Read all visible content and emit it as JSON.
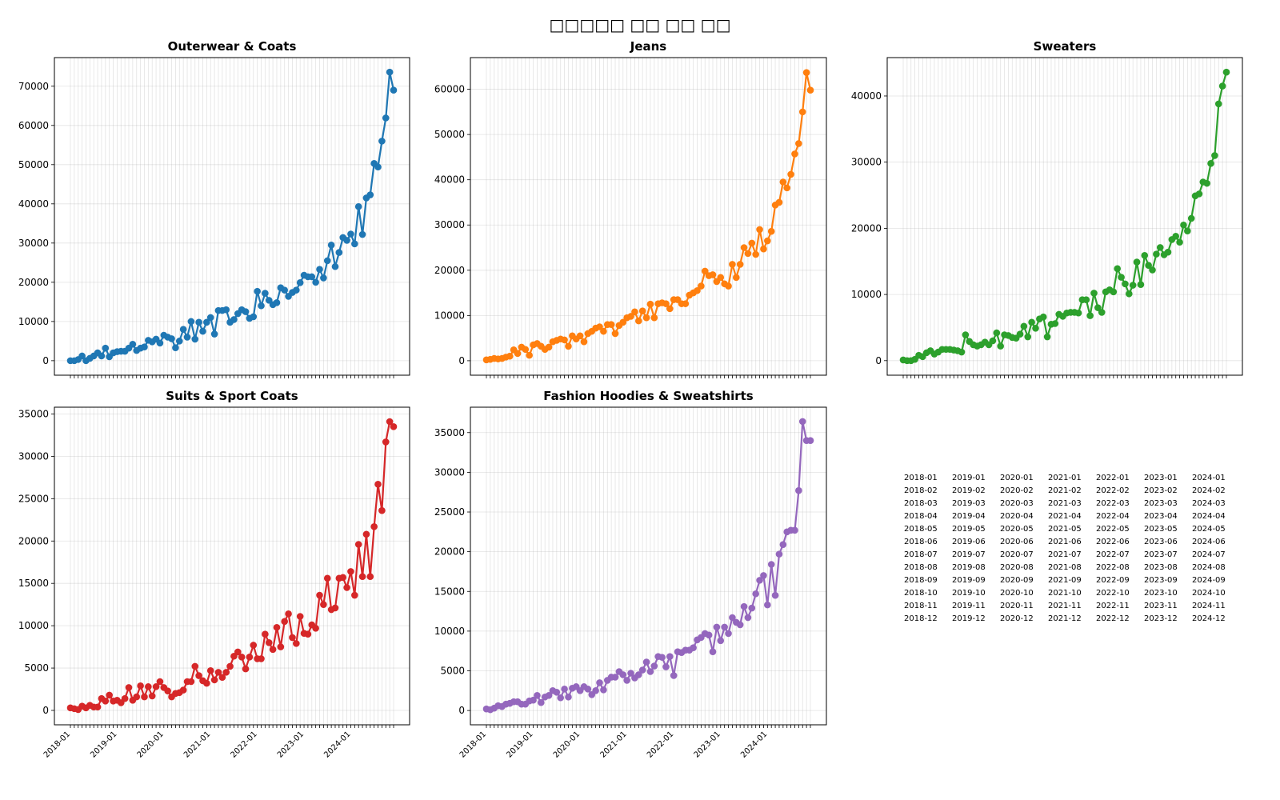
{
  "title": "□□□□□ □□ □□ □□",
  "chart_data": [
    {
      "type": "line",
      "title": "Outerwear & Coats",
      "color": "#1f77b4",
      "ylim": [
        -3700,
        77300
      ],
      "yticks": [
        0,
        10000,
        20000,
        30000,
        40000,
        50000,
        60000,
        70000
      ],
      "grid": true,
      "values": [
        0,
        0,
        300,
        1200,
        0,
        600,
        1200,
        2000,
        1200,
        3200,
        1000,
        2000,
        2300,
        2400,
        2400,
        3200,
        4200,
        2600,
        3200,
        3500,
        5200,
        4800,
        5500,
        4500,
        6500,
        6000,
        5600,
        3300,
        5000,
        8000,
        6000,
        10000,
        5500,
        9800,
        7500,
        9800,
        11000,
        6800,
        12800,
        12800,
        13000,
        9800,
        10500,
        12000,
        13000,
        12500,
        10800,
        11200,
        17700,
        14000,
        17200,
        15400,
        14300,
        14800,
        18600,
        18000,
        16400,
        17400,
        18000,
        19900,
        21800,
        21400,
        21400,
        20000,
        23300,
        21100,
        25500,
        29500,
        24000,
        27600,
        31400,
        30700,
        32300,
        29800,
        39300,
        32200,
        41500,
        42300,
        50300,
        49400,
        56000,
        61900,
        73600,
        69000
      ]
    },
    {
      "type": "line",
      "title": "Jeans",
      "color": "#ff7f0e",
      "ylim": [
        -3200,
        67000
      ],
      "yticks": [
        0,
        10000,
        20000,
        30000,
        40000,
        50000,
        60000
      ],
      "grid": true,
      "values": [
        200,
        300,
        500,
        400,
        500,
        800,
        1000,
        2400,
        1600,
        3000,
        2500,
        1200,
        3500,
        3800,
        3200,
        2500,
        3000,
        4200,
        4500,
        4800,
        4600,
        3200,
        5500,
        4800,
        5500,
        4200,
        6000,
        6500,
        7200,
        7500,
        6500,
        8000,
        8000,
        6000,
        7800,
        8500,
        9500,
        9800,
        10800,
        8800,
        11000,
        9500,
        12500,
        9500,
        12600,
        12800,
        12600,
        11500,
        13500,
        13500,
        12600,
        12600,
        14500,
        15000,
        15500,
        16500,
        19800,
        18800,
        19000,
        17500,
        18400,
        17000,
        16500,
        21300,
        18400,
        21300,
        25000,
        23700,
        26000,
        23500,
        29000,
        24700,
        26500,
        28600,
        34400,
        35000,
        39500,
        38200,
        41200,
        45700,
        48000,
        55000,
        63700,
        59800
      ]
    },
    {
      "type": "line",
      "title": "Sweaters",
      "color": "#2ca02c",
      "ylim": [
        -2200,
        45800
      ],
      "yticks": [
        0,
        10000,
        20000,
        30000,
        40000
      ],
      "grid": true,
      "values": [
        100,
        0,
        0,
        200,
        800,
        600,
        1200,
        1500,
        1000,
        1300,
        1700,
        1700,
        1700,
        1600,
        1500,
        1300,
        3900,
        2900,
        2400,
        2200,
        2400,
        2800,
        2400,
        3000,
        4200,
        2200,
        3900,
        3800,
        3500,
        3400,
        4000,
        5200,
        3600,
        5800,
        4900,
        6300,
        6600,
        3600,
        5500,
        5600,
        7000,
        6700,
        7200,
        7300,
        7300,
        7200,
        9200,
        9200,
        6800,
        10200,
        8000,
        7300,
        10400,
        10700,
        10400,
        13900,
        12600,
        11600,
        10100,
        11400,
        14900,
        11500,
        15900,
        14400,
        13700,
        16100,
        17100,
        16000,
        16400,
        18300,
        18800,
        17900,
        20500,
        19600,
        21500,
        24900,
        25200,
        27000,
        26800,
        29800,
        31000,
        38800,
        41500,
        43600
      ]
    },
    {
      "type": "line",
      "title": "Suits & Sport Coats",
      "color": "#d62728",
      "ylim": [
        -1700,
        35800
      ],
      "yticks": [
        0,
        5000,
        10000,
        15000,
        20000,
        25000,
        30000,
        35000
      ],
      "grid": true,
      "values": [
        300,
        200,
        100,
        500,
        300,
        600,
        400,
        400,
        1400,
        1100,
        1800,
        1100,
        1200,
        900,
        1400,
        2700,
        1200,
        1600,
        2900,
        1600,
        2800,
        1700,
        2800,
        3400,
        2700,
        2300,
        1600,
        2000,
        2100,
        2400,
        3400,
        3400,
        5200,
        4100,
        3500,
        3200,
        4700,
        3600,
        4500,
        3900,
        4500,
        5200,
        6400,
        6900,
        6300,
        4900,
        6300,
        7700,
        6100,
        6100,
        9000,
        8000,
        7200,
        9800,
        7500,
        10500,
        11400,
        8600,
        7900,
        11100,
        9100,
        9000,
        10100,
        9700,
        13600,
        12500,
        15600,
        11900,
        12100,
        15600,
        15700,
        14500,
        16400,
        13600,
        19600,
        15800,
        20800,
        15800,
        21700,
        26700,
        23600,
        31700,
        34100,
        33500
      ]
    },
    {
      "type": "line",
      "title": "Fashion Hoodies & Sweatshirts",
      "color": "#9467bd",
      "ylim": [
        -1800,
        38200
      ],
      "yticks": [
        0,
        5000,
        10000,
        15000,
        20000,
        25000,
        30000,
        35000
      ],
      "grid": true,
      "values": [
        200,
        100,
        300,
        600,
        500,
        800,
        900,
        1100,
        1100,
        800,
        800,
        1200,
        1300,
        1900,
        1000,
        1700,
        1900,
        2500,
        2300,
        1600,
        2700,
        1700,
        2800,
        3000,
        2500,
        3000,
        2700,
        2000,
        2500,
        3500,
        2600,
        3800,
        4200,
        4200,
        4900,
        4500,
        3800,
        4700,
        4100,
        4500,
        5100,
        6100,
        4900,
        5600,
        6800,
        6700,
        5500,
        6800,
        4400,
        7400,
        7300,
        7600,
        7600,
        7900,
        8900,
        9200,
        9700,
        9500,
        7400,
        10500,
        8800,
        10500,
        9700,
        11700,
        11100,
        10800,
        13100,
        11700,
        12900,
        14700,
        16400,
        17000,
        13300,
        18400,
        14500,
        19700,
        20900,
        22500,
        22700,
        22700,
        27700,
        36400,
        34000,
        34000
      ]
    }
  ],
  "x_categories": [
    "2018-01",
    "2018-02",
    "2018-03",
    "2018-04",
    "2018-05",
    "2018-06",
    "2018-07",
    "2018-08",
    "2018-09",
    "2018-10",
    "2018-11",
    "2018-12",
    "2019-01",
    "2019-02",
    "2019-03",
    "2019-04",
    "2019-05",
    "2019-06",
    "2019-07",
    "2019-08",
    "2019-09",
    "2019-10",
    "2019-11",
    "2019-12",
    "2020-01",
    "2020-02",
    "2020-03",
    "2020-04",
    "2020-05",
    "2020-06",
    "2020-07",
    "2020-08",
    "2020-09",
    "2020-10",
    "2020-11",
    "2020-12",
    "2021-01",
    "2021-02",
    "2021-03",
    "2021-04",
    "2021-05",
    "2021-06",
    "2021-07",
    "2021-08",
    "2021-09",
    "2021-10",
    "2021-11",
    "2021-12",
    "2022-01",
    "2022-02",
    "2022-03",
    "2022-04",
    "2022-05",
    "2022-06",
    "2022-07",
    "2022-08",
    "2022-09",
    "2022-10",
    "2022-11",
    "2022-12",
    "2023-01",
    "2023-02",
    "2023-03",
    "2023-04",
    "2023-05",
    "2023-06",
    "2023-07",
    "2023-08",
    "2023-09",
    "2023-10",
    "2023-11",
    "2023-12",
    "2024-01",
    "2024-02",
    "2024-03",
    "2024-04",
    "2024-05",
    "2024-06",
    "2024-07",
    "2024-08",
    "2024-09",
    "2024-10",
    "2024-11",
    "2024-12"
  ]
}
